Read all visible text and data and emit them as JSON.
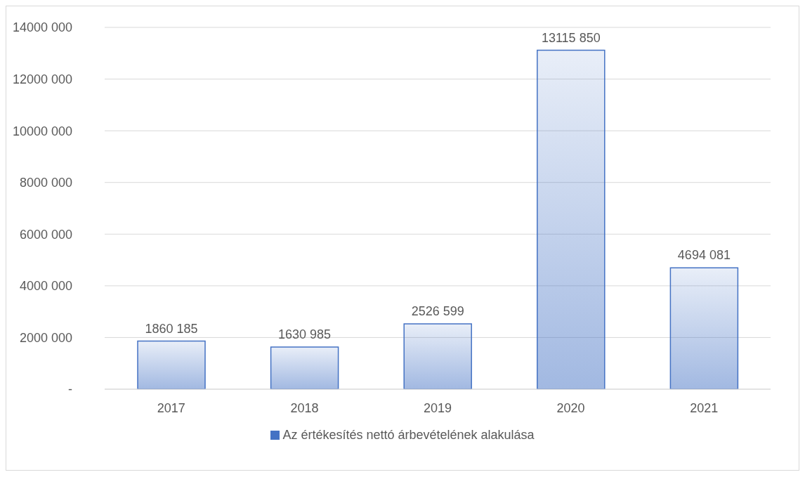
{
  "chart_data": {
    "type": "bar",
    "categories": [
      "2017",
      "2018",
      "2019",
      "2020",
      "2021"
    ],
    "series": [
      {
        "name": "Az értékesítés nettó árbevételének alakulása",
        "color": "#4472c4",
        "values": [
          1860185,
          1630985,
          2526599,
          13115850,
          4694081
        ],
        "value_labels": [
          "1860 185",
          "1630 985",
          "2526 599",
          "13115 850",
          "4694 081"
        ]
      }
    ],
    "ylim": [
      0,
      14000000
    ],
    "yticks": [
      {
        "value": 0,
        "label": "-"
      },
      {
        "value": 2000000,
        "label": "2000 000"
      },
      {
        "value": 4000000,
        "label": "4000 000"
      },
      {
        "value": 6000000,
        "label": "6000 000"
      },
      {
        "value": 8000000,
        "label": "8000 000"
      },
      {
        "value": 10000000,
        "label": "10000 000"
      },
      {
        "value": 12000000,
        "label": "12000 000"
      },
      {
        "value": 14000000,
        "label": "14000 000"
      }
    ],
    "grid": "y",
    "legend": "bottom"
  }
}
